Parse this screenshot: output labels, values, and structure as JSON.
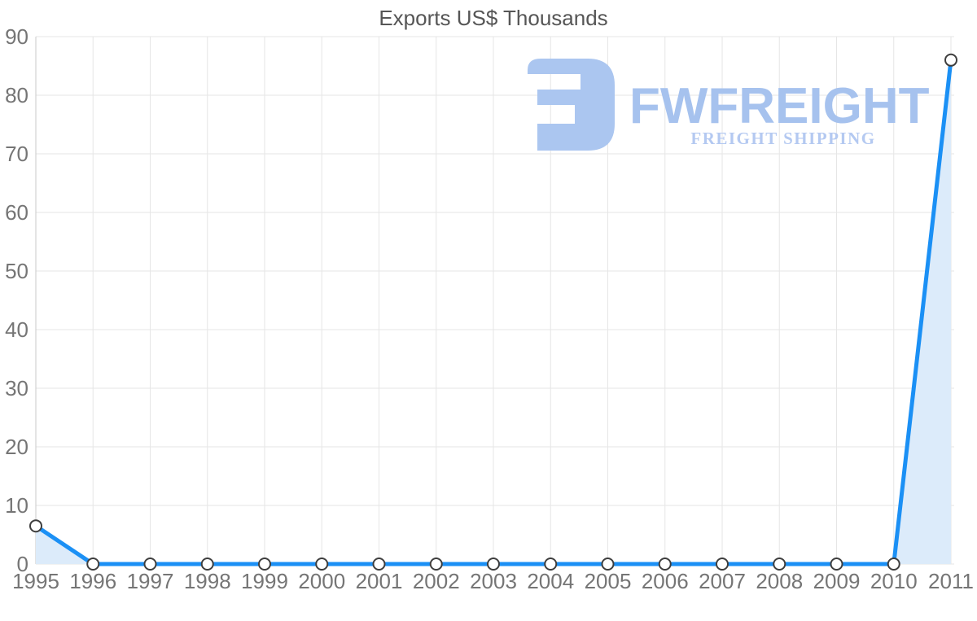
{
  "chart_data": {
    "type": "area",
    "title": "Exports US$ Thousands",
    "categories": [
      "1995",
      "1996",
      "1997",
      "1998",
      "1999",
      "2000",
      "2001",
      "2002",
      "2003",
      "2004",
      "2005",
      "2006",
      "2007",
      "2008",
      "2009",
      "2010",
      "2011"
    ],
    "series": [
      {
        "name": "Exports US$ Thousands",
        "values": [
          6.5,
          0,
          0,
          0,
          0,
          0,
          0,
          0,
          0,
          0,
          0,
          0,
          0,
          0,
          0,
          0,
          86
        ]
      }
    ],
    "xlabel": "",
    "ylabel": "",
    "ylim": [
      0,
      90
    ],
    "ytick_step": 10,
    "grid": true,
    "legend_position": "none",
    "colors": {
      "line": "#1b90f5",
      "area": "#dcebfa",
      "marker_fill": "#ffffff",
      "marker_stroke": "#3e3e3e",
      "grid": "#e6e6e6",
      "axis": "#c9c9c9",
      "tick_label": "#757575",
      "title": "#565656"
    }
  },
  "logo": {
    "wordmark": "FWFREIGHT",
    "subtitle": "FREIGHT SHIPPING",
    "glyph_color": "#abc6f0",
    "wordmark_color": "#a6c2ee",
    "subtitle_color": "#b4c9f1"
  }
}
